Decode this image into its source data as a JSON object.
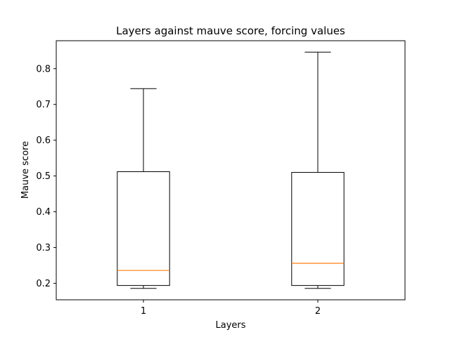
{
  "chart_data": {
    "type": "box",
    "title": "Layers against mauve score, forcing values",
    "xlabel": "Layers",
    "ylabel": "Mauve score",
    "categories": [
      "1",
      "2"
    ],
    "boxes": [
      {
        "category": "1",
        "whisker_low": 0.186,
        "q1": 0.194,
        "median": 0.236,
        "q3": 0.512,
        "whisker_high": 0.744
      },
      {
        "category": "2",
        "whisker_low": 0.186,
        "q1": 0.194,
        "median": 0.256,
        "q3": 0.51,
        "whisker_high": 0.846
      }
    ],
    "xlim": [
      0.5,
      2.5
    ],
    "ylim": [
      0.154,
      0.878
    ],
    "yticks": [
      0.2,
      0.3,
      0.4,
      0.5,
      0.6,
      0.7,
      0.8
    ],
    "ytick_labels": [
      "0.2",
      "0.3",
      "0.4",
      "0.5",
      "0.6",
      "0.7",
      "0.8"
    ],
    "grid": false,
    "colors": {
      "box": "#000000",
      "median": "#ff7f0e",
      "axes": "#000000"
    }
  }
}
